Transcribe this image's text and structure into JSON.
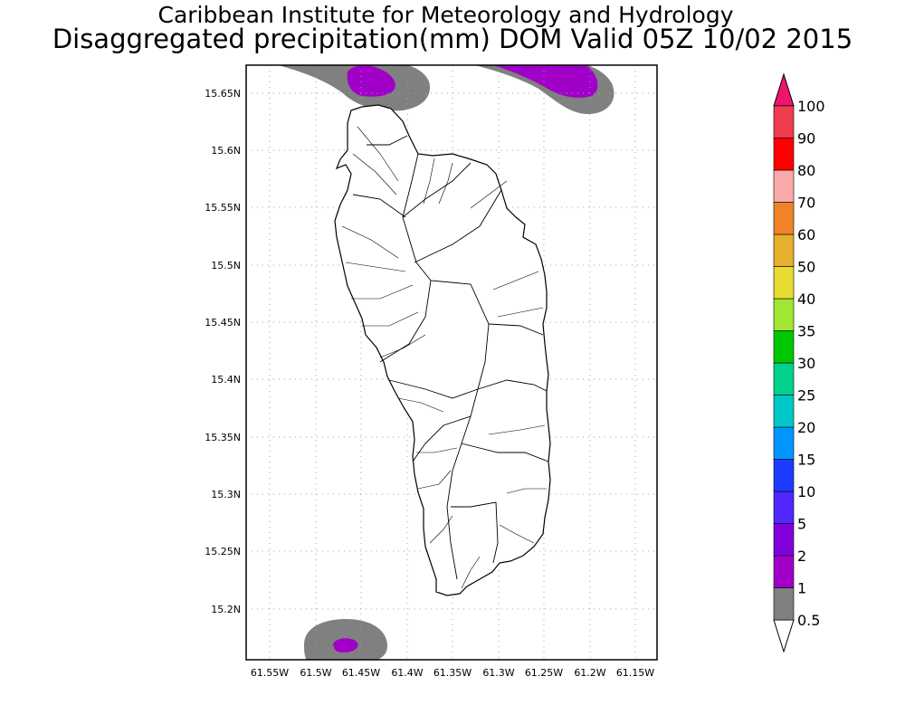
{
  "title": {
    "line1": "Caribbean Institute for Meteorology and Hydrology",
    "line2": "Disaggregated precipitation(mm) DOM Valid 05Z 10/02 2015"
  },
  "map": {
    "region": "Dominica",
    "lat_labels": [
      "15.65N",
      "15.6N",
      "15.55N",
      "15.5N",
      "15.45N",
      "15.4N",
      "15.35N",
      "15.3N",
      "15.25N",
      "15.2N"
    ],
    "lon_labels": [
      "61.55W",
      "61.5W",
      "61.45W",
      "61.4W",
      "61.35W",
      "61.3W",
      "61.25W",
      "61.2W",
      "61.15W"
    ],
    "grid": "dotted",
    "precip_areas": [
      {
        "location": "north-west offshore",
        "levels_mm": [
          0.5,
          1
        ]
      },
      {
        "location": "north-east offshore",
        "levels_mm": [
          0.5,
          1
        ]
      },
      {
        "location": "south-west offshore",
        "levels_mm": [
          0.5,
          1
        ]
      }
    ]
  },
  "colorbar": {
    "levels": [
      {
        "label": "0.5",
        "color": "#ffffff"
      },
      {
        "label": "1",
        "color": "#808080"
      },
      {
        "label": "2",
        "color": "#a000c8"
      },
      {
        "label": "5",
        "color": "#8200dc"
      },
      {
        "label": "10",
        "color": "#5028ff"
      },
      {
        "label": "15",
        "color": "#1e3cff"
      },
      {
        "label": "20",
        "color": "#0096ff"
      },
      {
        "label": "25",
        "color": "#00c8c8"
      },
      {
        "label": "30",
        "color": "#00d28c"
      },
      {
        "label": "35",
        "color": "#00c800"
      },
      {
        "label": "40",
        "color": "#a0e632"
      },
      {
        "label": "50",
        "color": "#e6dc32"
      },
      {
        "label": "60",
        "color": "#e6af2d"
      },
      {
        "label": "70",
        "color": "#f08228"
      },
      {
        "label": "80",
        "color": "#faaaaa"
      },
      {
        "label": "90",
        "color": "#ff0000"
      },
      {
        "label": "100",
        "color": "#f03c50"
      }
    ],
    "top_color": "#f0146e"
  }
}
